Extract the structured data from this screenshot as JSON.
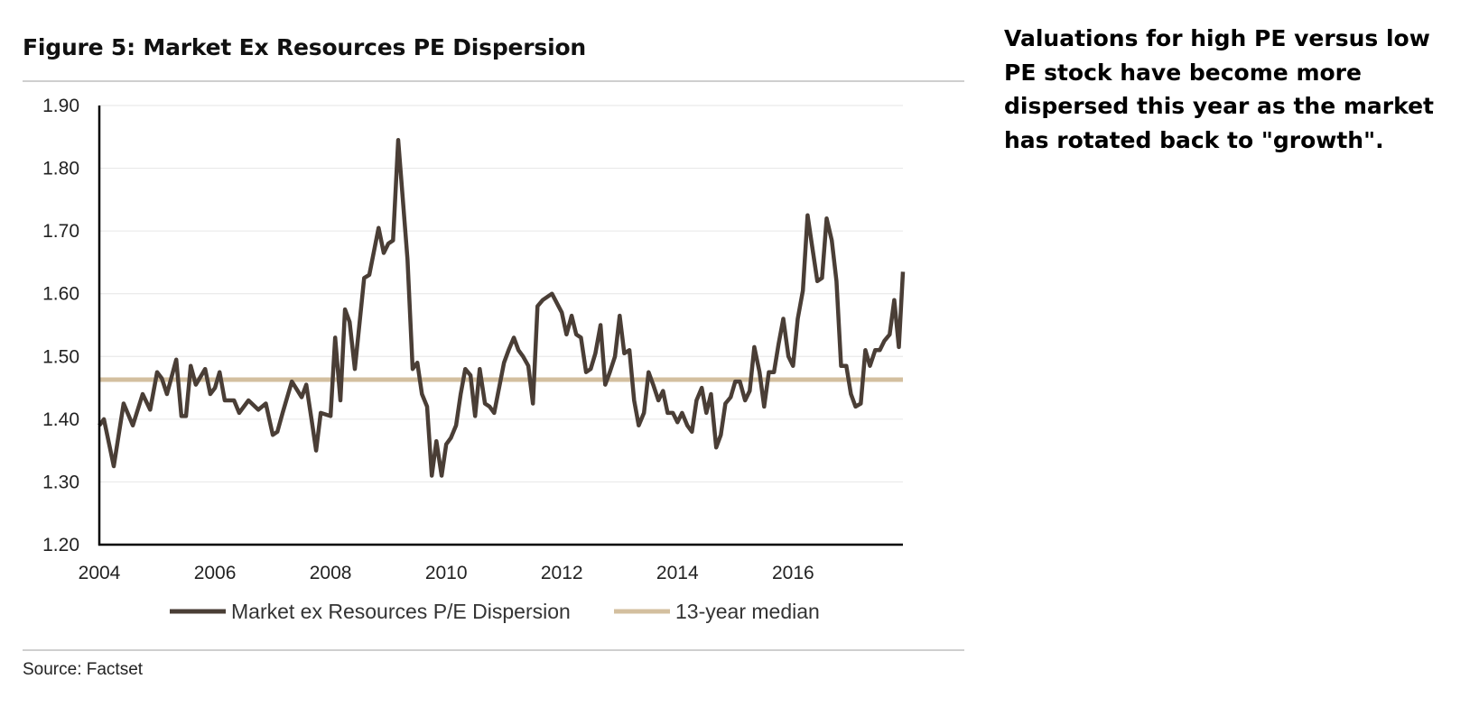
{
  "figure": {
    "title": "Figure 5: Market Ex Resources PE Dispersion",
    "source": "Source: Factset"
  },
  "commentary": "Valuations for high PE versus low PE stock have become more dispersed this year as the market has rotated back to \"growth\".",
  "colors": {
    "series_line": "#4a3e36",
    "median_line": "#d3bf9f",
    "grid": "#e6e6e6",
    "axis": "#000000"
  },
  "chart_data": {
    "type": "line",
    "title": "Figure 5: Market Ex Resources PE Dispersion",
    "xlabel": "",
    "ylabel": "",
    "xlim": [
      2004,
      2017.9
    ],
    "ylim": [
      1.2,
      1.9
    ],
    "grid": true,
    "legend_position": "bottom",
    "x_ticks": [
      "2004",
      "2006",
      "2008",
      "2010",
      "2012",
      "2014",
      "2016"
    ],
    "y_ticks": [
      "1.20",
      "1.30",
      "1.40",
      "1.50",
      "1.60",
      "1.70",
      "1.80",
      "1.90"
    ],
    "series": [
      {
        "name": "Market ex Resources P/E Dispersion",
        "x": [
          2004.0,
          2004.08,
          2004.25,
          2004.42,
          2004.58,
          2004.75,
          2004.88,
          2005.0,
          2005.08,
          2005.17,
          2005.33,
          2005.42,
          2005.5,
          2005.58,
          2005.67,
          2005.83,
          2005.92,
          2006.0,
          2006.08,
          2006.17,
          2006.33,
          2006.42,
          2006.58,
          2006.75,
          2006.88,
          2007.0,
          2007.08,
          2007.17,
          2007.33,
          2007.5,
          2007.58,
          2007.67,
          2007.75,
          2007.83,
          2008.0,
          2008.08,
          2008.17,
          2008.25,
          2008.33,
          2008.42,
          2008.58,
          2008.67,
          2008.83,
          2008.92,
          2009.0,
          2009.08,
          2009.17,
          2009.33,
          2009.42,
          2009.5,
          2009.58,
          2009.67,
          2009.75,
          2009.83,
          2009.92,
          2010.0,
          2010.08,
          2010.17,
          2010.25,
          2010.33,
          2010.42,
          2010.5,
          2010.58,
          2010.67,
          2010.75,
          2010.83,
          2011.0,
          2011.08,
          2011.17,
          2011.25,
          2011.33,
          2011.42,
          2011.5,
          2011.58,
          2011.67,
          2011.83,
          2012.0,
          2012.08,
          2012.17,
          2012.25,
          2012.33,
          2012.42,
          2012.5,
          2012.58,
          2012.67,
          2012.75,
          2012.83,
          2012.92,
          2013.0,
          2013.08,
          2013.17,
          2013.25,
          2013.33,
          2013.42,
          2013.5,
          2013.58,
          2013.67,
          2013.75,
          2013.83,
          2013.92,
          2014.0,
          2014.08,
          2014.17,
          2014.25,
          2014.33,
          2014.42,
          2014.5,
          2014.58,
          2014.67,
          2014.75,
          2014.83,
          2014.92,
          2015.0,
          2015.08,
          2015.17,
          2015.25,
          2015.33,
          2015.42,
          2015.5,
          2015.58,
          2015.67,
          2015.75,
          2015.83,
          2015.92,
          2016.0,
          2016.08,
          2016.17,
          2016.25,
          2016.33,
          2016.42,
          2016.5,
          2016.58,
          2016.67,
          2016.75,
          2016.83,
          2016.92,
          2017.0,
          2017.08,
          2017.17,
          2017.25,
          2017.33,
          2017.42,
          2017.5,
          2017.58,
          2017.67,
          2017.75,
          2017.83,
          2017.9
        ],
        "values": [
          1.39,
          1.4,
          1.325,
          1.425,
          1.39,
          1.44,
          1.415,
          1.475,
          1.465,
          1.44,
          1.495,
          1.405,
          1.405,
          1.485,
          1.455,
          1.48,
          1.44,
          1.45,
          1.475,
          1.43,
          1.43,
          1.41,
          1.43,
          1.415,
          1.425,
          1.375,
          1.38,
          1.41,
          1.46,
          1.435,
          1.455,
          1.4,
          1.35,
          1.41,
          1.405,
          1.53,
          1.43,
          1.575,
          1.555,
          1.48,
          1.625,
          1.63,
          1.705,
          1.665,
          1.68,
          1.685,
          1.845,
          1.655,
          1.48,
          1.49,
          1.44,
          1.42,
          1.31,
          1.365,
          1.31,
          1.36,
          1.37,
          1.39,
          1.44,
          1.48,
          1.47,
          1.405,
          1.48,
          1.425,
          1.42,
          1.41,
          1.49,
          1.51,
          1.53,
          1.51,
          1.5,
          1.485,
          1.425,
          1.58,
          1.59,
          1.6,
          1.57,
          1.535,
          1.565,
          1.535,
          1.53,
          1.475,
          1.48,
          1.505,
          1.55,
          1.455,
          1.475,
          1.5,
          1.565,
          1.505,
          1.51,
          1.43,
          1.39,
          1.41,
          1.475,
          1.455,
          1.43,
          1.445,
          1.41,
          1.41,
          1.395,
          1.41,
          1.39,
          1.38,
          1.43,
          1.45,
          1.41,
          1.44,
          1.355,
          1.375,
          1.425,
          1.435,
          1.46,
          1.46,
          1.43,
          1.445,
          1.515,
          1.475,
          1.42,
          1.475,
          1.475,
          1.52,
          1.56,
          1.5,
          1.485,
          1.56,
          1.605,
          1.725,
          1.675,
          1.62,
          1.625,
          1.72,
          1.685,
          1.62,
          1.485,
          1.485,
          1.44,
          1.42,
          1.425,
          1.51,
          1.485,
          1.51,
          1.51,
          1.525,
          1.535,
          1.59,
          1.515,
          1.635
        ]
      },
      {
        "name": "13-year median",
        "x": [
          2004.0,
          2017.9
        ],
        "values": [
          1.463,
          1.463
        ]
      }
    ]
  }
}
